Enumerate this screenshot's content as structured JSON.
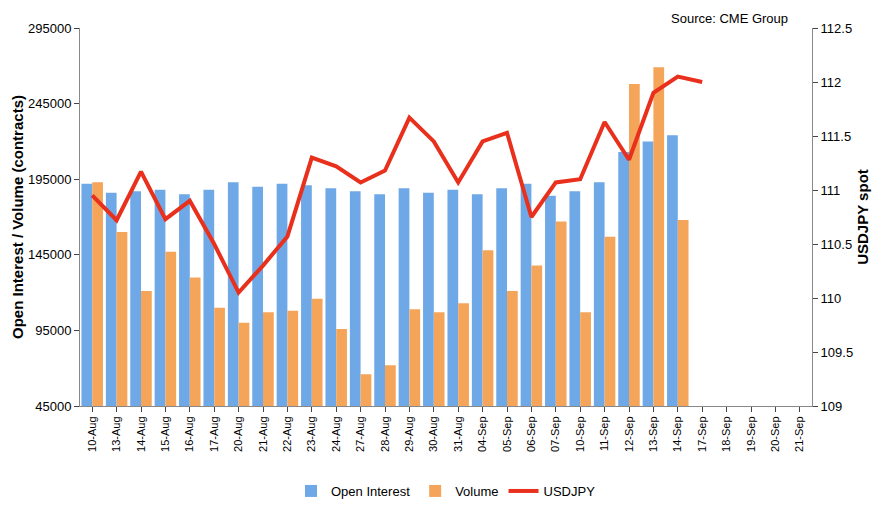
{
  "chart_data": {
    "type": "bar",
    "annotations": [
      "Source: CME Group"
    ],
    "y_label": "Open Interest / Volume (contracts)",
    "y2_label": "USDJPY spot",
    "categories": [
      "10-Aug",
      "13-Aug",
      "14-Aug",
      "15-Aug",
      "16-Aug",
      "17-Aug",
      "20-Aug",
      "21-Aug",
      "22-Aug",
      "23-Aug",
      "24-Aug",
      "27-Aug",
      "28-Aug",
      "29-Aug",
      "30-Aug",
      "31-Aug",
      "04-Sep",
      "05-Sep",
      "06-Sep",
      "07-Sep",
      "10-Sep",
      "11-Sep",
      "12-Sep",
      "13-Sep",
      "14-Sep",
      "17-Sep",
      "18-Sep",
      "19-Sep",
      "20-Sep",
      "21-Sep"
    ],
    "series": [
      {
        "name": "Open Interest",
        "type": "bar",
        "color": "#6fa8e6",
        "values": [
          192000,
          186000,
          187000,
          188000,
          185000,
          188000,
          193000,
          190000,
          192000,
          191000,
          189000,
          187000,
          185000,
          189000,
          186000,
          188000,
          185000,
          189000,
          192000,
          184000,
          187000,
          193000,
          213000,
          220000,
          224000,
          null,
          null,
          null,
          null,
          null
        ]
      },
      {
        "name": "Volume",
        "type": "bar",
        "color": "#f5a55a",
        "values": [
          193000,
          160000,
          121000,
          147000,
          130000,
          110000,
          100000,
          107000,
          108000,
          116000,
          96000,
          66000,
          72000,
          109000,
          107000,
          113000,
          148000,
          121000,
          138000,
          167000,
          107000,
          157000,
          258000,
          269000,
          168000,
          null,
          null,
          null,
          null,
          null
        ]
      },
      {
        "name": "USDJPY",
        "type": "line",
        "axis": "y2",
        "color": "#e8301c",
        "values": [
          110.95,
          110.72,
          111.17,
          110.73,
          110.9,
          110.5,
          110.05,
          110.3,
          110.57,
          111.3,
          111.22,
          111.07,
          111.18,
          111.67,
          111.45,
          111.07,
          111.45,
          111.53,
          110.75,
          111.07,
          111.1,
          111.63,
          111.28,
          111.9,
          112.05,
          112.0,
          null,
          null,
          null,
          null
        ]
      }
    ],
    "ylim": [
      45000,
      295000
    ],
    "yticks": [
      45000,
      95000,
      145000,
      195000,
      245000,
      295000
    ],
    "y2lim": [
      109,
      112.5
    ],
    "y2ticks": [
      109,
      109.5,
      110,
      110.5,
      111,
      111.5,
      112,
      112.5
    ],
    "grid": false,
    "legend": "bottom"
  }
}
